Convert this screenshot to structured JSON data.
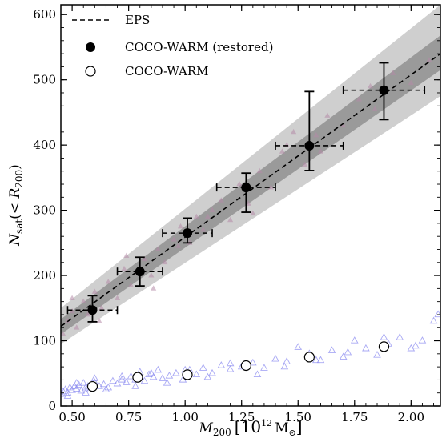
{
  "chart_data": {
    "type": "scatter",
    "title": "",
    "xlabel": {
      "main": "M",
      "sub": "200",
      "open": "[10",
      "exp": "12",
      "unit": "M",
      "unit_sub": "⊙",
      "close": "]"
    },
    "ylabel": {
      "main": "N",
      "sub": "sat",
      "open": "(< ",
      "r": "R",
      "r_sub": "200",
      "close": ")"
    },
    "xlim": [
      0.45,
      2.13
    ],
    "ylim": [
      0,
      615
    ],
    "xticks": [
      0.5,
      0.75,
      1.0,
      1.25,
      1.5,
      1.75,
      2.0
    ],
    "xtick_labels": [
      "0.50",
      "0.75",
      "1.00",
      "1.25",
      "1.50",
      "1.75",
      "2.00"
    ],
    "yticks": [
      0,
      100,
      200,
      300,
      400,
      500,
      600
    ],
    "ytick_labels": [
      "0",
      "100",
      "200",
      "300",
      "400",
      "500",
      "600"
    ],
    "legend_position": "top-left",
    "colors": {
      "band_outer": "#cfcfcf",
      "band_inner": "#9a9a9a",
      "magenta_points": "#b58aa8",
      "blue_points": "#8c8cf0",
      "line": "#000000"
    },
    "series": [
      {
        "name": "EPS",
        "style": "dashed-line",
        "x": [
          0.45,
          2.13
        ],
        "y": [
          122,
          540
        ]
      },
      {
        "name": "COCO-WARM (restored)",
        "style": "filled-circle-errorbars",
        "x": [
          0.59,
          0.8,
          1.01,
          1.27,
          1.55,
          1.88
        ],
        "y": [
          147,
          206,
          265,
          335,
          399,
          484
        ],
        "xerr": [
          0.11,
          0.1,
          0.11,
          0.13,
          0.15,
          0.18
        ],
        "yerr_low": [
          18,
          22,
          15,
          38,
          38,
          45
        ],
        "yerr_high": [
          22,
          22,
          23,
          22,
          83,
          42
        ]
      },
      {
        "name": "COCO-WARM",
        "style": "open-circle",
        "x": [
          0.59,
          0.79,
          1.01,
          1.27,
          1.55,
          1.88
        ],
        "y": [
          30,
          44,
          48,
          62,
          75,
          91
        ]
      }
    ],
    "bands": {
      "x": [
        0.45,
        2.13
      ],
      "outer_low": [
        95,
        475
      ],
      "outer_high": [
        150,
        615
      ],
      "inner_low": [
        110,
        515
      ],
      "inner_high": [
        133,
        568
      ]
    },
    "scatter_restored": {
      "x": [
        0.46,
        0.48,
        0.5,
        0.52,
        0.55,
        0.57,
        0.6,
        0.63,
        0.66,
        0.7,
        0.73,
        0.76,
        0.79,
        0.82,
        0.85,
        0.88,
        0.91,
        0.95,
        0.98,
        1.02,
        1.05,
        1.08,
        1.12,
        1.16,
        1.2,
        1.24,
        1.28,
        1.33,
        1.38,
        1.43,
        1.48,
        1.53,
        1.58,
        1.63,
        1.7,
        1.77,
        1.84,
        1.92,
        2.0,
        2.08,
        0.5,
        0.62,
        0.74,
        0.86,
        0.97,
        1.1,
        1.3,
        1.45,
        1.6,
        1.82
      ],
      "y": [
        110,
        130,
        145,
        120,
        160,
        140,
        175,
        150,
        190,
        165,
        210,
        185,
        205,
        225,
        200,
        240,
        220,
        255,
        275,
        250,
        290,
        270,
        300,
        315,
        285,
        340,
        310,
        360,
        335,
        390,
        420,
        370,
        415,
        445,
        430,
        470,
        455,
        510,
        495,
        530,
        165,
        130,
        230,
        180,
        245,
        290,
        295,
        400,
        390,
        490
      ]
    },
    "scatter_plain": {
      "x": [
        0.45,
        0.46,
        0.47,
        0.48,
        0.49,
        0.5,
        0.51,
        0.52,
        0.53,
        0.54,
        0.55,
        0.56,
        0.57,
        0.58,
        0.6,
        0.62,
        0.64,
        0.66,
        0.68,
        0.7,
        0.72,
        0.74,
        0.76,
        0.78,
        0.8,
        0.82,
        0.84,
        0.86,
        0.88,
        0.9,
        0.93,
        0.96,
        0.99,
        1.02,
        1.05,
        1.08,
        1.12,
        1.16,
        1.2,
        1.25,
        1.3,
        1.35,
        1.4,
        1.45,
        1.5,
        1.55,
        1.6,
        1.65,
        1.7,
        1.75,
        1.8,
        1.85,
        1.9,
        1.95,
        2.0,
        2.05,
        2.1,
        2.12,
        0.48,
        0.52,
        0.56,
        0.6,
        0.65,
        0.72,
        0.78,
        0.85,
        0.92,
        1.0,
        1.1,
        1.2,
        1.32,
        1.44,
        1.58,
        1.72,
        1.88,
        2.02
      ],
      "y": [
        18,
        22,
        25,
        20,
        28,
        24,
        30,
        26,
        32,
        23,
        35,
        28,
        30,
        25,
        36,
        30,
        33,
        28,
        38,
        34,
        40,
        36,
        45,
        40,
        52,
        38,
        48,
        44,
        55,
        42,
        46,
        50,
        40,
        55,
        48,
        58,
        50,
        62,
        56,
        60,
        66,
        58,
        72,
        68,
        90,
        80,
        70,
        85,
        75,
        100,
        88,
        78,
        95,
        105,
        88,
        100,
        130,
        140,
        15,
        35,
        20,
        42,
        25,
        45,
        30,
        50,
        35,
        55,
        44,
        65,
        48,
        60,
        70,
        82,
        105,
        92
      ]
    }
  }
}
